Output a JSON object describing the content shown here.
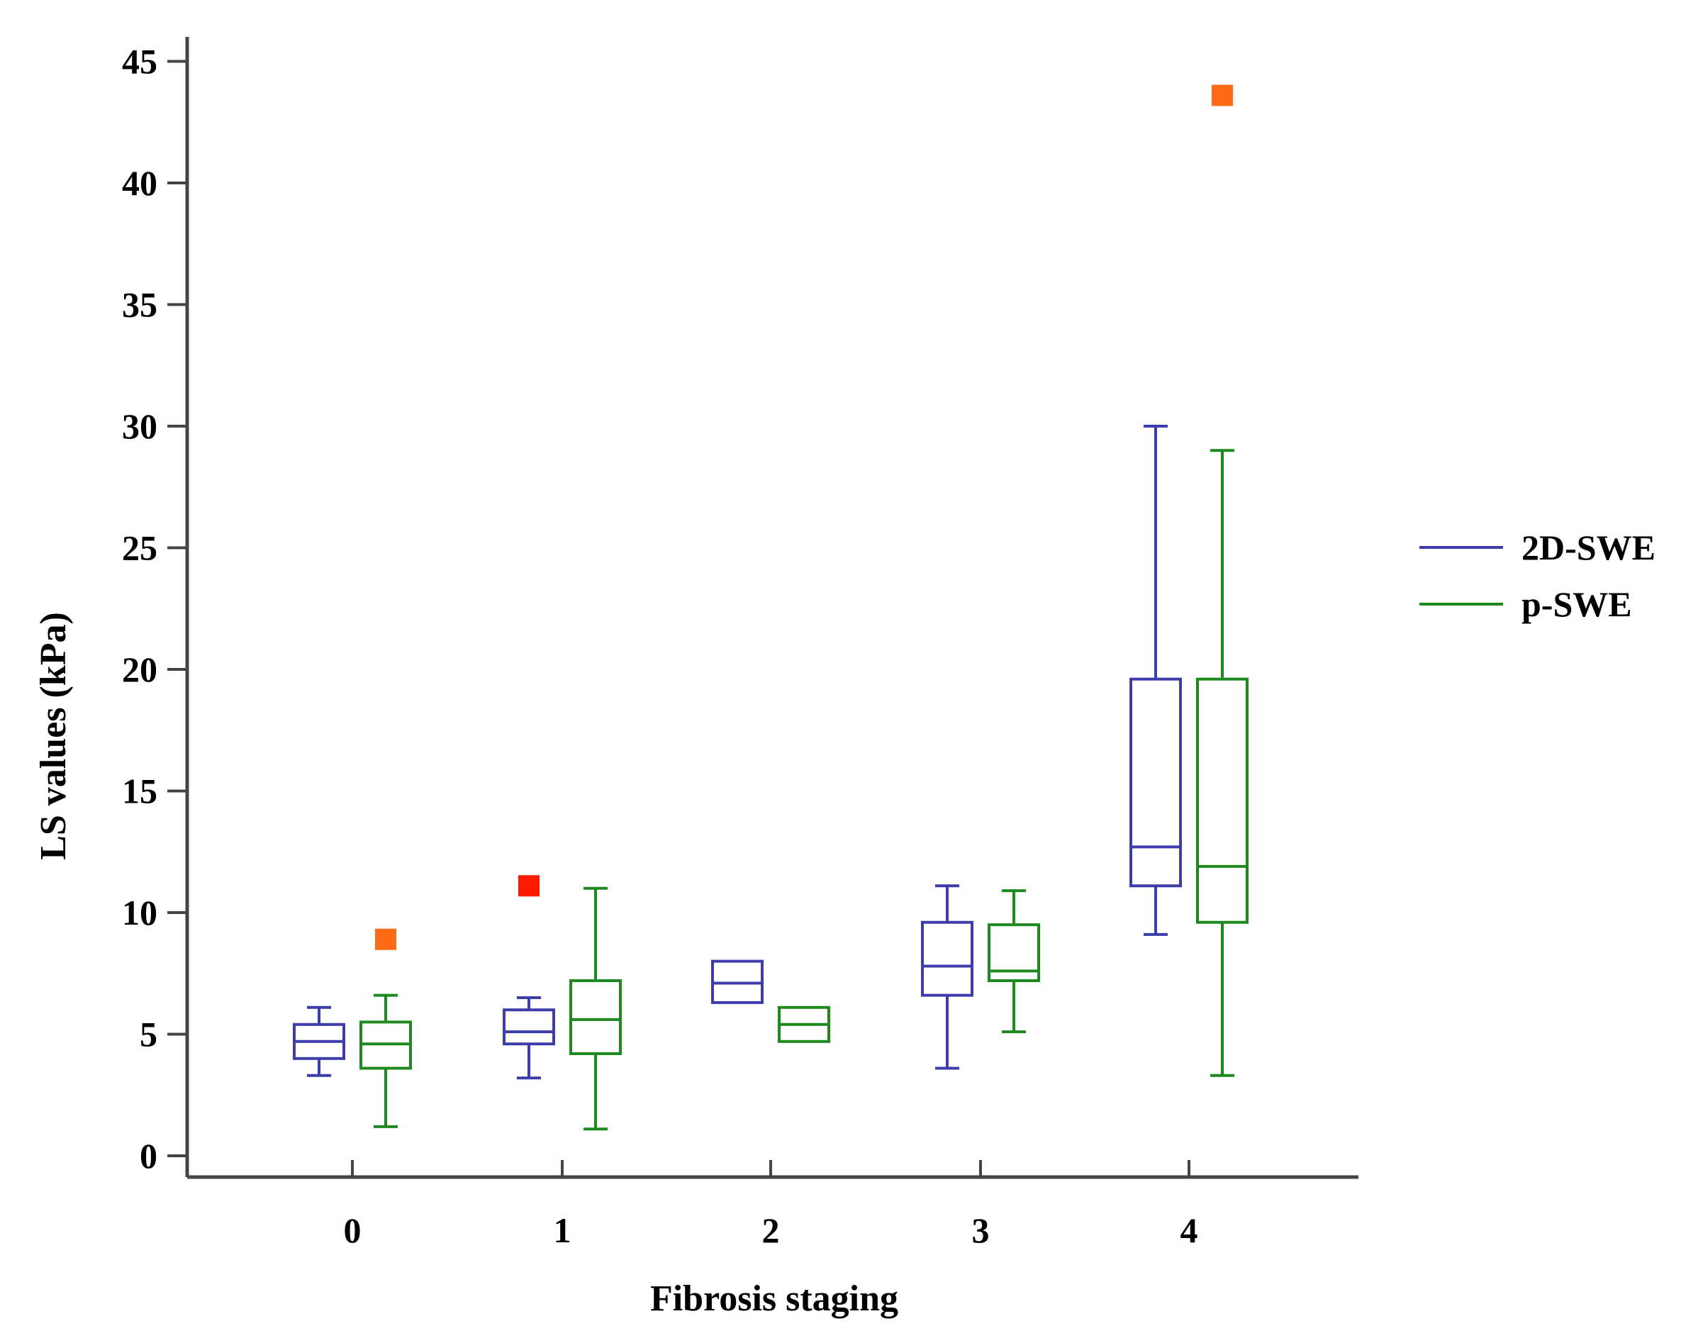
{
  "chart_data": {
    "type": "box",
    "title": "",
    "xlabel": "Fibrosis staging",
    "ylabel": "LS values (kPa)",
    "categories": [
      "0",
      "1",
      "2",
      "3",
      "4"
    ],
    "yticks": [
      "0",
      "5",
      "10",
      "15",
      "20",
      "25",
      "30",
      "35",
      "40",
      "45"
    ],
    "ylim": [
      0,
      46
    ],
    "legend_position": "right",
    "series": [
      {
        "name": "2D-SWE",
        "color": "#3c3caa",
        "boxes": [
          {
            "category": "0",
            "whisker_low": 3.3,
            "q1": 4.0,
            "median": 4.7,
            "q3": 5.4,
            "whisker_high": 6.1
          },
          {
            "category": "1",
            "whisker_low": 3.2,
            "q1": 4.6,
            "median": 5.1,
            "q3": 6.0,
            "whisker_high": 6.5
          },
          {
            "category": "2",
            "whisker_low": 6.3,
            "q1": 6.3,
            "median": 7.1,
            "q3": 8.0,
            "whisker_high": 8.0
          },
          {
            "category": "3",
            "whisker_low": 3.6,
            "q1": 6.6,
            "median": 7.8,
            "q3": 9.6,
            "whisker_high": 11.1
          },
          {
            "category": "4",
            "whisker_low": 9.1,
            "q1": 11.1,
            "median": 12.7,
            "q3": 19.6,
            "whisker_high": 30.0
          }
        ],
        "outliers": [
          {
            "category": "1",
            "value": 11.1,
            "color": "#ff1a00"
          }
        ]
      },
      {
        "name": "p-SWE",
        "color": "#1e8a1e",
        "boxes": [
          {
            "category": "0",
            "whisker_low": 1.2,
            "q1": 3.6,
            "median": 4.6,
            "q3": 5.5,
            "whisker_high": 6.6
          },
          {
            "category": "1",
            "whisker_low": 1.1,
            "q1": 4.2,
            "median": 5.6,
            "q3": 7.2,
            "whisker_high": 11.0
          },
          {
            "category": "2",
            "whisker_low": 4.7,
            "q1": 4.7,
            "median": 5.4,
            "q3": 6.1,
            "whisker_high": 6.1
          },
          {
            "category": "3",
            "whisker_low": 5.1,
            "q1": 7.2,
            "median": 7.6,
            "q3": 9.5,
            "whisker_high": 10.9
          },
          {
            "category": "4",
            "whisker_low": 3.3,
            "q1": 9.6,
            "median": 11.9,
            "q3": 19.6,
            "whisker_high": 29.0
          }
        ],
        "outliers": [
          {
            "category": "0",
            "value": 8.9,
            "color": "#ff6a14"
          },
          {
            "category": "4",
            "value": 43.6,
            "color": "#ff6a14"
          }
        ]
      }
    ],
    "axis_color": "#444444"
  }
}
